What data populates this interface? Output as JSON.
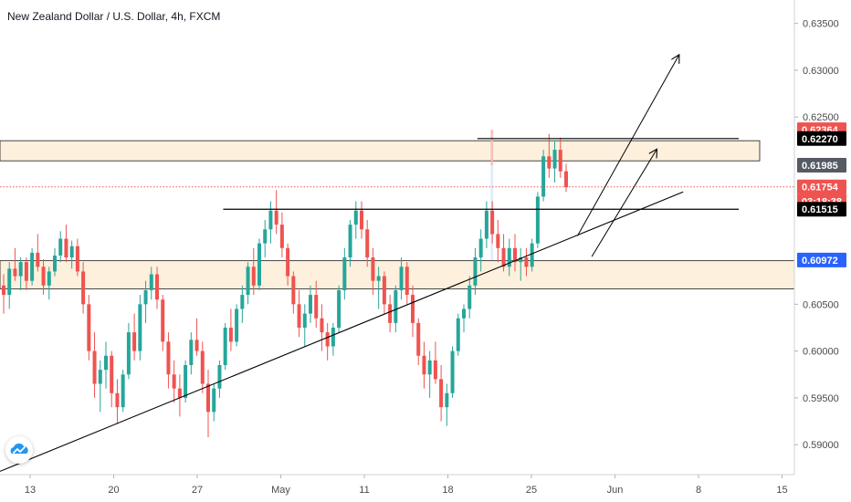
{
  "header": {
    "title": "New Zealand Dollar / U.S. Dollar, 4h, FXCM"
  },
  "logo": {
    "icon": "tradingview-cloud-icon"
  },
  "colors": {
    "up": "#26a69a",
    "down": "#ef5350",
    "zone": "#fdf0dc",
    "stop": "#f4b6b3",
    "target": "#dbe7f8",
    "target_marker": "#2962ff",
    "current": "#ef5350",
    "black": "#000000",
    "axis_text": "#4a4a4a"
  },
  "chart_data": {
    "type": "candlestick",
    "title": "New Zealand Dollar / U.S. Dollar, 4h, FXCM",
    "ylim": [
      0.5868,
      0.6375
    ],
    "y_ticks": [
      "0.63500",
      "0.63000",
      "0.62500",
      "0.60500",
      "0.60000",
      "0.59500",
      "0.59000"
    ],
    "x_ticks": [
      "13",
      "20",
      "27",
      "May",
      "11",
      "18",
      "25",
      "Jun",
      "8",
      "15"
    ],
    "price_tags": [
      {
        "label": "0.62364",
        "value": 0.62364,
        "color": "#ef5350",
        "text_color": "#ffffff"
      },
      {
        "label": "0.62270",
        "value": 0.6227,
        "color": "#000000",
        "text_color": "#ffffff"
      },
      {
        "label": "0.61985",
        "value": 0.61985,
        "color": "#555a63",
        "text_color": "#ffffff"
      },
      {
        "label": "0.61754",
        "value": 0.61754,
        "color": "#ef5350",
        "text_color": "#ffffff"
      },
      {
        "label": "03:18:38",
        "value": 0.616,
        "color": "#ef5350",
        "text_color": "#ffffff"
      },
      {
        "label": "0.61515",
        "value": 0.61515,
        "color": "#000000",
        "text_color": "#ffffff"
      },
      {
        "label": "0.60972",
        "value": 0.60972,
        "color": "#2962ff",
        "text_color": "#ffffff"
      }
    ],
    "zones": [
      {
        "name": "upper-zone",
        "y_top": 0.62247,
        "y_bottom": 0.62032
      },
      {
        "name": "lower-zone",
        "y_top": 0.60965,
        "y_bottom": 0.60665
      }
    ],
    "position_box": {
      "entry": 0.61985,
      "stop": 0.62364,
      "target": 0.60972,
      "x_start": 0.6177,
      "x_end": 0.6208
    },
    "horizontal_lines": [
      {
        "name": "resistance-line-top",
        "value": 0.6227,
        "x_start": 0.601,
        "x_end": 0.93
      },
      {
        "name": "support-line-mid",
        "value": 0.61515,
        "x_start": 0.281,
        "x_end": 0.93
      }
    ],
    "current_price": 0.61754,
    "trendlines": [
      {
        "name": "ascending-trendline",
        "x1": 0.0,
        "y1": 0.58715,
        "x2": 0.86,
        "y2": 0.617
      }
    ],
    "arrows": [
      {
        "name": "projection-arrow-long",
        "x1": 0.727,
        "y1": 0.61231,
        "x2": 0.855,
        "y2": 0.63166
      },
      {
        "name": "projection-arrow-short",
        "x1": 0.745,
        "y1": 0.61009,
        "x2": 0.827,
        "y2": 0.62158
      }
    ],
    "ohlc": [
      [
        0.607,
        0.6082,
        0.604,
        0.606
      ],
      [
        0.606,
        0.6095,
        0.6045,
        0.6088
      ],
      [
        0.6088,
        0.611,
        0.6075,
        0.608
      ],
      [
        0.608,
        0.61,
        0.6065,
        0.6095
      ],
      [
        0.6095,
        0.61,
        0.6065,
        0.6075
      ],
      [
        0.6075,
        0.611,
        0.607,
        0.6105
      ],
      [
        0.6105,
        0.6125,
        0.6085,
        0.609
      ],
      [
        0.609,
        0.6098,
        0.606,
        0.607
      ],
      [
        0.607,
        0.609,
        0.6055,
        0.6085
      ],
      [
        0.6085,
        0.611,
        0.608,
        0.6102
      ],
      [
        0.6102,
        0.6128,
        0.6095,
        0.612
      ],
      [
        0.612,
        0.6135,
        0.6095,
        0.61
      ],
      [
        0.61,
        0.6118,
        0.6088,
        0.6112
      ],
      [
        0.6112,
        0.612,
        0.608,
        0.6085
      ],
      [
        0.6085,
        0.6095,
        0.604,
        0.605
      ],
      [
        0.605,
        0.606,
        0.599,
        0.6
      ],
      [
        0.6,
        0.602,
        0.595,
        0.5965
      ],
      [
        0.5965,
        0.599,
        0.5935,
        0.598
      ],
      [
        0.598,
        0.601,
        0.596,
        0.5995
      ],
      [
        0.5995,
        0.6,
        0.594,
        0.5955
      ],
      [
        0.5955,
        0.597,
        0.5922,
        0.594
      ],
      [
        0.594,
        0.598,
        0.5935,
        0.5975
      ],
      [
        0.5975,
        0.603,
        0.597,
        0.602
      ],
      [
        0.602,
        0.604,
        0.599,
        0.6
      ],
      [
        0.6,
        0.606,
        0.599,
        0.605
      ],
      [
        0.605,
        0.6075,
        0.603,
        0.6065
      ],
      [
        0.6065,
        0.609,
        0.6055,
        0.6082
      ],
      [
        0.6082,
        0.609,
        0.6045,
        0.6055
      ],
      [
        0.6055,
        0.606,
        0.6,
        0.601
      ],
      [
        0.601,
        0.602,
        0.596,
        0.5975
      ],
      [
        0.5975,
        0.599,
        0.5945,
        0.596
      ],
      [
        0.596,
        0.5975,
        0.593,
        0.595
      ],
      [
        0.595,
        0.599,
        0.5945,
        0.5985
      ],
      [
        0.5985,
        0.602,
        0.5975,
        0.6012
      ],
      [
        0.6012,
        0.6035,
        0.5995,
        0.6
      ],
      [
        0.6,
        0.601,
        0.5955,
        0.5965
      ],
      [
        0.5965,
        0.598,
        0.5908,
        0.5935
      ],
      [
        0.5935,
        0.5965,
        0.5925,
        0.596
      ],
      [
        0.596,
        0.599,
        0.595,
        0.5985
      ],
      [
        0.5985,
        0.603,
        0.598,
        0.6025
      ],
      [
        0.6025,
        0.6045,
        0.6,
        0.601
      ],
      [
        0.601,
        0.605,
        0.6005,
        0.6045
      ],
      [
        0.6045,
        0.607,
        0.603,
        0.606
      ],
      [
        0.606,
        0.6095,
        0.605,
        0.609
      ],
      [
        0.609,
        0.611,
        0.606,
        0.607
      ],
      [
        0.607,
        0.612,
        0.6065,
        0.6115
      ],
      [
        0.6115,
        0.614,
        0.61,
        0.613
      ],
      [
        0.613,
        0.616,
        0.6115,
        0.615
      ],
      [
        0.615,
        0.6172,
        0.6125,
        0.6135
      ],
      [
        0.6135,
        0.6148,
        0.61,
        0.611
      ],
      [
        0.611,
        0.6115,
        0.607,
        0.608
      ],
      [
        0.608,
        0.6085,
        0.604,
        0.605
      ],
      [
        0.605,
        0.6065,
        0.6015,
        0.6025
      ],
      [
        0.6025,
        0.605,
        0.6005,
        0.604
      ],
      [
        0.604,
        0.607,
        0.603,
        0.606
      ],
      [
        0.606,
        0.6075,
        0.6025,
        0.6035
      ],
      [
        0.6035,
        0.605,
        0.6,
        0.602
      ],
      [
        0.602,
        0.603,
        0.599,
        0.6005
      ],
      [
        0.6005,
        0.603,
        0.5995,
        0.6025
      ],
      [
        0.6025,
        0.607,
        0.602,
        0.6065
      ],
      [
        0.6065,
        0.611,
        0.6055,
        0.61
      ],
      [
        0.61,
        0.614,
        0.609,
        0.6135
      ],
      [
        0.6135,
        0.616,
        0.612,
        0.615
      ],
      [
        0.615,
        0.616,
        0.612,
        0.613
      ],
      [
        0.613,
        0.614,
        0.609,
        0.61
      ],
      [
        0.61,
        0.611,
        0.606,
        0.6075
      ],
      [
        0.6075,
        0.609,
        0.6045,
        0.608
      ],
      [
        0.608,
        0.6085,
        0.604,
        0.605
      ],
      [
        0.605,
        0.606,
        0.602,
        0.603
      ],
      [
        0.603,
        0.607,
        0.602,
        0.6065
      ],
      [
        0.6065,
        0.61,
        0.6055,
        0.609
      ],
      [
        0.609,
        0.6095,
        0.605,
        0.606
      ],
      [
        0.606,
        0.607,
        0.6015,
        0.603
      ],
      [
        0.603,
        0.6035,
        0.5985,
        0.5995
      ],
      [
        0.5995,
        0.601,
        0.596,
        0.5975
      ],
      [
        0.5975,
        0.6,
        0.595,
        0.599
      ],
      [
        0.599,
        0.601,
        0.5965,
        0.597
      ],
      [
        0.597,
        0.5985,
        0.5925,
        0.594
      ],
      [
        0.594,
        0.5965,
        0.592,
        0.5955
      ],
      [
        0.5955,
        0.6005,
        0.595,
        0.6
      ],
      [
        0.6,
        0.604,
        0.5995,
        0.6035
      ],
      [
        0.6035,
        0.605,
        0.602,
        0.6045
      ],
      [
        0.6045,
        0.608,
        0.6035,
        0.607
      ],
      [
        0.607,
        0.611,
        0.606,
        0.61
      ],
      [
        0.61,
        0.613,
        0.6085,
        0.612
      ],
      [
        0.612,
        0.616,
        0.611,
        0.615
      ],
      [
        0.615,
        0.616,
        0.6115,
        0.6125
      ],
      [
        0.6125,
        0.614,
        0.6095,
        0.611
      ],
      [
        0.611,
        0.6125,
        0.6085,
        0.609
      ],
      [
        0.609,
        0.612,
        0.608,
        0.611
      ],
      [
        0.611,
        0.6125,
        0.6085,
        0.6095
      ],
      [
        0.6095,
        0.611,
        0.6075,
        0.61
      ],
      [
        0.61,
        0.611,
        0.608,
        0.609
      ],
      [
        0.609,
        0.612,
        0.6085,
        0.6115
      ],
      [
        0.6115,
        0.617,
        0.611,
        0.6165
      ],
      [
        0.6165,
        0.6215,
        0.616,
        0.6208
      ],
      [
        0.6208,
        0.6232,
        0.6185,
        0.6195
      ],
      [
        0.6195,
        0.6225,
        0.618,
        0.6215
      ],
      [
        0.6215,
        0.6228,
        0.6185,
        0.6192
      ],
      [
        0.6192,
        0.62,
        0.617,
        0.6175
      ]
    ]
  }
}
